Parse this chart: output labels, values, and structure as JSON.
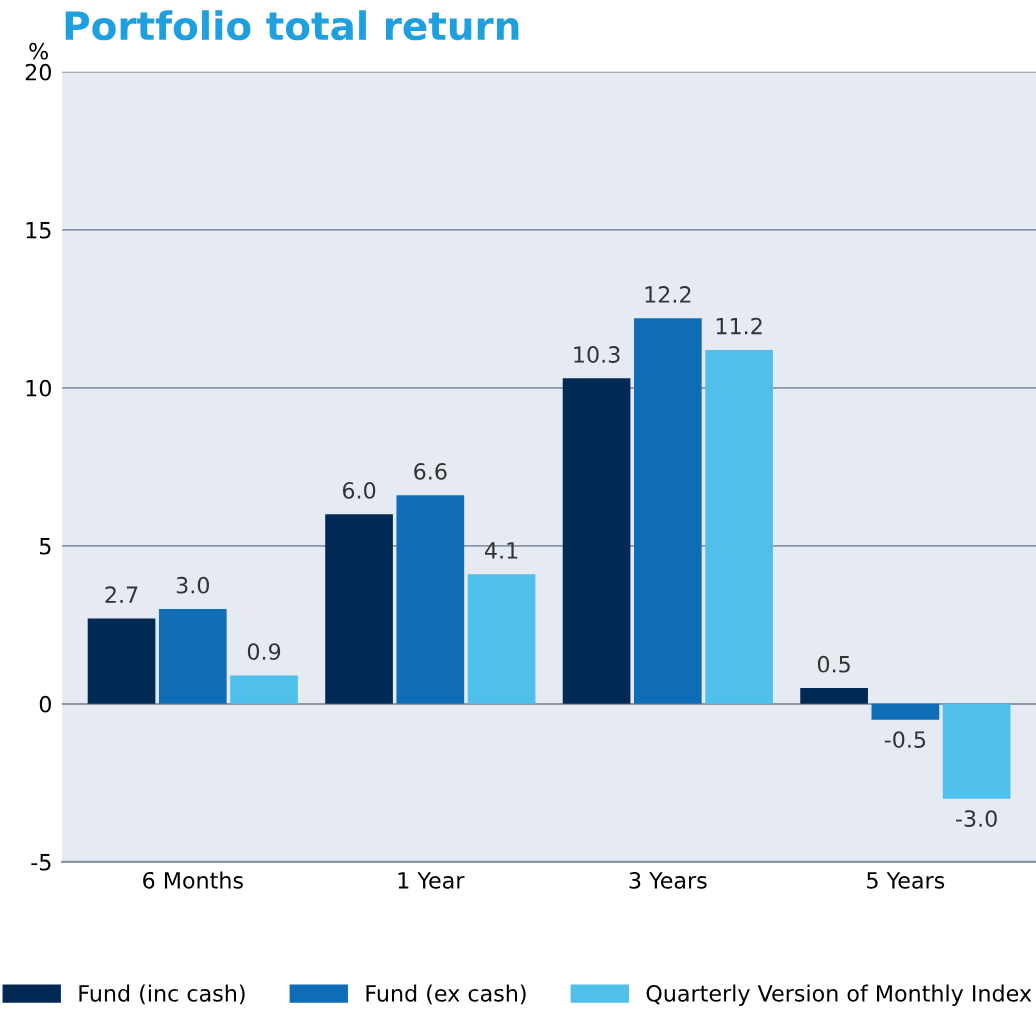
{
  "chart_data": {
    "type": "bar",
    "title": "Portfolio total return",
    "ylabel": "%",
    "categories": [
      "6 Months",
      "1 Year",
      "3 Years",
      "5 Years"
    ],
    "series": [
      {
        "name": "Fund (inc cash)",
        "color": "#002a54",
        "values": [
          2.7,
          6.0,
          10.3,
          0.5
        ],
        "value_labels": [
          "2.7",
          "6.0",
          "10.3",
          "0.5"
        ]
      },
      {
        "name": "Fund (ex cash)",
        "color": "#0f6db7",
        "values": [
          3.0,
          6.6,
          12.2,
          -0.5
        ],
        "value_labels": [
          "3.0",
          "6.6",
          "12.2",
          "-0.5"
        ]
      },
      {
        "name": "Quarterly Version of Monthly Index",
        "color": "#4fbfec",
        "values": [
          0.9,
          4.1,
          11.2,
          -3.0
        ],
        "value_labels": [
          "0.9",
          "4.1",
          "11.2",
          "-3.0"
        ]
      }
    ],
    "ylim": [
      -5,
      20
    ],
    "yticks": [
      {
        "value": -5,
        "label": "-5"
      },
      0,
      5,
      10,
      15,
      20
    ],
    "grid": "y",
    "legend": "bottom"
  }
}
